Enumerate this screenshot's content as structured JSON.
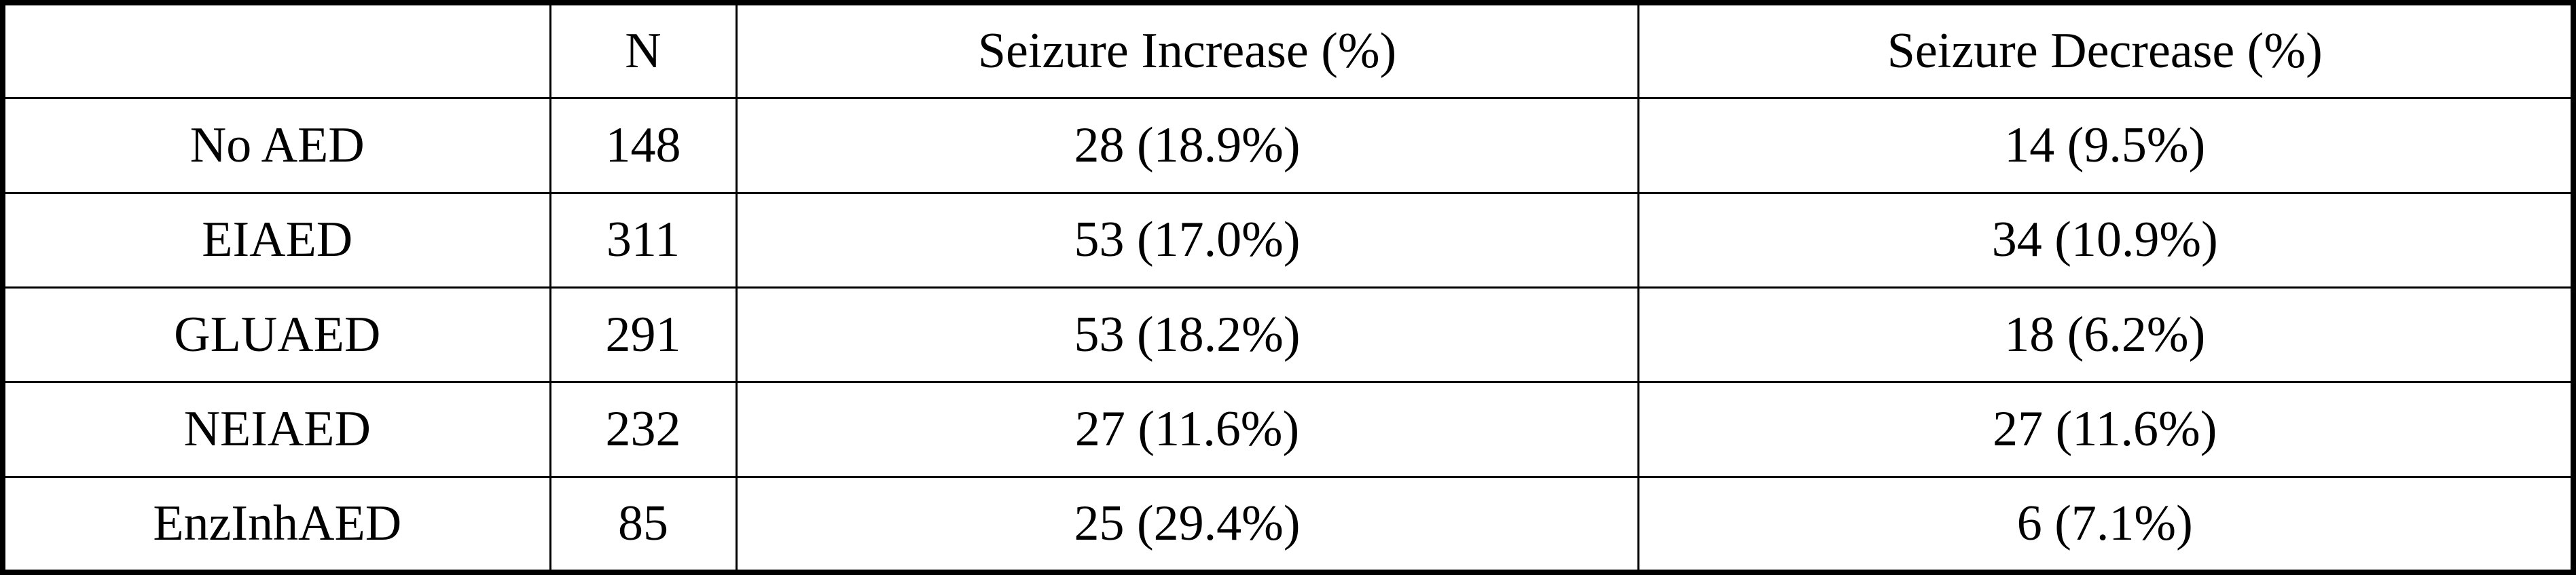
{
  "table": {
    "header": [
      "N",
      "Seizure Increase (%)",
      "Seizure Decrease (%)"
    ],
    "rows": [
      [
        "No AED",
        "148",
        "28 (18.9%)",
        "14 (9.5%)"
      ],
      [
        "EIAED",
        "311",
        "53 (17.0%)",
        "34 (10.9%)"
      ],
      [
        "GLUAED",
        "291",
        "53 (18.2%)",
        "18 (6.2%)"
      ],
      [
        "NEIAED",
        "232",
        "27 (11.6%)",
        "27 (11.6%)"
      ],
      [
        "EnzInhAED",
        "85",
        "25 (29.4%)",
        "6 (7.1%)"
      ]
    ]
  }
}
